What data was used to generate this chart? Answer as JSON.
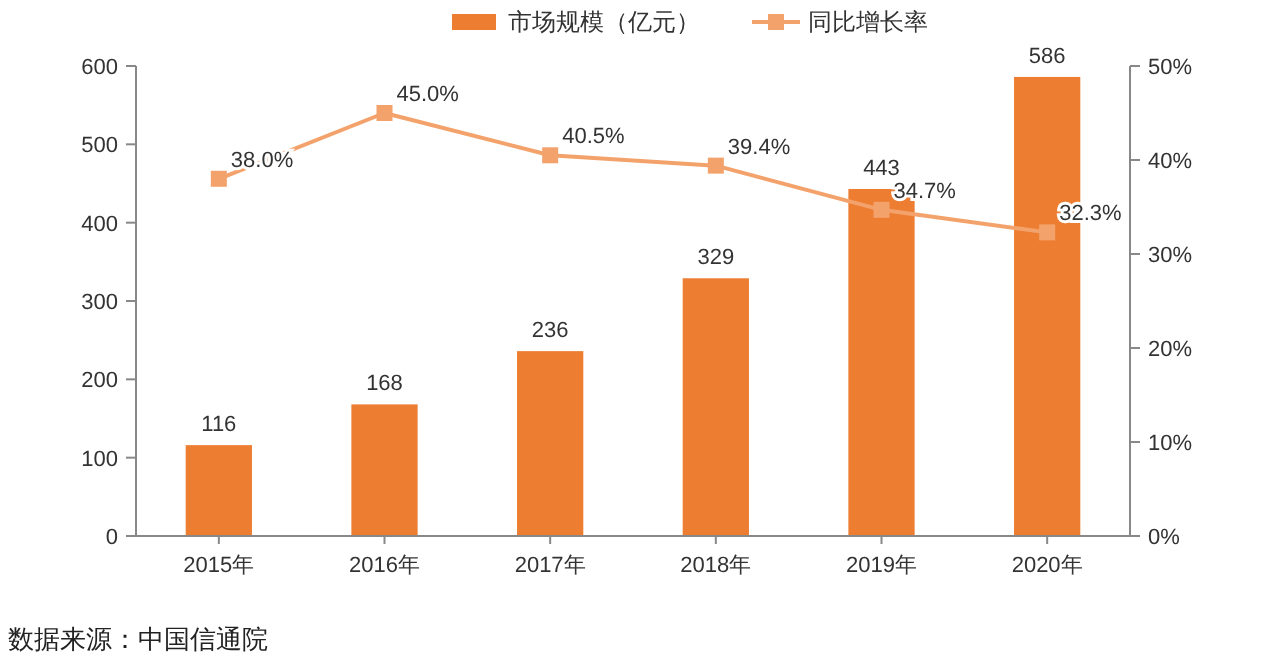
{
  "chart_data": {
    "type": "bar",
    "categories": [
      "2015年",
      "2016年",
      "2017年",
      "2018年",
      "2019年",
      "2020年"
    ],
    "series": [
      {
        "name": "市场规模（亿元）",
        "color": "#ed7d31",
        "values": [
          116,
          168,
          236,
          329,
          443,
          586
        ],
        "value_labels": [
          "116",
          "168",
          "236",
          "329",
          "443",
          "586"
        ]
      },
      {
        "name": "同比增长率",
        "type": "line",
        "axis": "y2",
        "color": "#f4a26b",
        "marker": "square",
        "values": [
          38.0,
          45.0,
          40.5,
          39.4,
          34.7,
          32.3
        ],
        "value_labels": [
          "38.0%",
          "45.0%",
          "40.5%",
          "39.4%",
          "34.7%",
          "32.3%"
        ]
      }
    ],
    "ylim": [
      0,
      600
    ],
    "yticks": [
      0,
      100,
      200,
      300,
      400,
      500,
      600
    ],
    "y2lim": [
      0,
      50
    ],
    "y2ticks": [
      {
        "value": 0,
        "label": "0%"
      },
      {
        "value": 10,
        "label": "10%"
      },
      {
        "value": 20,
        "label": "20%"
      },
      {
        "value": 30,
        "label": "30%"
      },
      {
        "value": 40,
        "label": "40%"
      },
      {
        "value": 50,
        "label": "50%"
      }
    ],
    "legend": "top",
    "grid": false,
    "annotations": [
      "数据来源：中国信通院"
    ]
  }
}
